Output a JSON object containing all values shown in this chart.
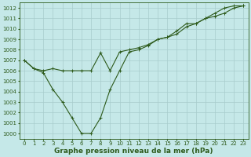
{
  "xlabel": "Graphe pression niveau de la mer (hPa)",
  "bg_color": "#c5e8e8",
  "line_color": "#2d5a1b",
  "grid_color": "#a8cccc",
  "ylim": [
    999.5,
    1012.5
  ],
  "xlim": [
    -0.5,
    23.5
  ],
  "yticks": [
    1000,
    1001,
    1002,
    1003,
    1004,
    1005,
    1006,
    1007,
    1008,
    1009,
    1010,
    1011,
    1012
  ],
  "xticks": [
    0,
    1,
    2,
    3,
    4,
    5,
    6,
    7,
    8,
    9,
    10,
    11,
    12,
    13,
    14,
    15,
    16,
    17,
    18,
    19,
    20,
    21,
    22,
    23
  ],
  "series1_x": [
    0,
    1,
    2,
    3,
    4,
    5,
    6,
    7,
    8,
    9,
    10,
    11,
    12,
    13,
    14,
    15,
    16,
    17,
    18,
    19,
    20,
    21,
    22,
    23
  ],
  "series1_y": [
    1007.0,
    1006.2,
    1006.0,
    1006.2,
    1006.0,
    1006.0,
    1006.0,
    1006.0,
    1007.7,
    1006.0,
    1007.8,
    1008.0,
    1008.2,
    1008.5,
    1009.0,
    1009.2,
    1009.5,
    1010.2,
    1010.5,
    1011.0,
    1011.2,
    1011.5,
    1012.0,
    1012.2
  ],
  "series2_x": [
    0,
    1,
    2,
    3,
    4,
    5,
    6,
    7,
    8,
    9,
    10,
    11,
    12,
    13,
    14,
    15,
    16,
    17,
    18,
    19,
    20,
    21,
    22,
    23
  ],
  "series2_y": [
    1007.0,
    1006.2,
    1005.8,
    1004.2,
    1003.0,
    1001.5,
    1000.0,
    1000.0,
    1001.5,
    1004.2,
    1006.0,
    1007.8,
    1008.0,
    1008.4,
    1009.0,
    1009.2,
    1009.8,
    1010.5,
    1010.5,
    1011.0,
    1011.5,
    1012.0,
    1012.2,
    1012.2
  ],
  "marker": "+",
  "markersize": 3.5,
  "linewidth": 0.8,
  "xlabel_fontsize": 6.5,
  "tick_fontsize": 5.0
}
